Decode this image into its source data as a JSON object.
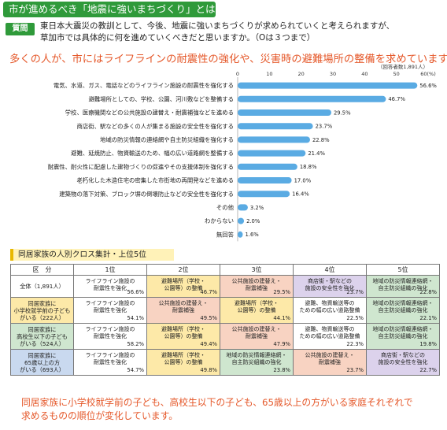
{
  "header": {
    "title": "市が進めるべき「地震に強いまちづくり」とは",
    "question_badge": "質問",
    "question_line1": "東日本大震災の教訓として、今後、地震に強いまちづくりが求められていくと考えられますが、",
    "question_line2": "草加市では具体的に何を進めていくべきだと思いますか。（Oは３つまで）",
    "headline": "多くの人が、市にはライフラインの耐震性の強化や、災害時の避難場所の整備を求めています。"
  },
  "chart_data": {
    "type": "bar",
    "orientation": "horizontal",
    "note": "（回答者数1,891人）",
    "x_ticks": [
      "0",
      "10",
      "20",
      "30",
      "40",
      "50",
      "60(%)"
    ],
    "xlim": [
      0,
      60
    ],
    "categories": [
      "電気、水道、ガス、電話などのライフライン施設の耐震性を強化する",
      "避難場所としての、学校、公園、河川敷などを整備する",
      "学校、医療機関などの公共施設の建替え・耐震補強などを進める",
      "商店街、駅などの多くの人が集まる施設の安全性を強化する",
      "地域の防災情報の連絡網や自主防災組織を強化する",
      "避難、延焼防止、物資輸送のため、幅の広い道路網を整備する",
      "耐震性、耐火性に配慮した建物づくりの促進やその支援体制を強化する",
      "老朽化した木造住宅の密集した市街地の再開発などを進める",
      "建築物の落下対策、ブロック塀の倒壊防止などの安全性を強化する",
      "その他",
      "わからない",
      "無回答"
    ],
    "values": [
      56.6,
      46.7,
      29.5,
      23.7,
      22.8,
      21.4,
      18.8,
      17.0,
      16.4,
      3.2,
      2.0,
      1.6
    ],
    "value_labels": [
      "56.6%",
      "46.7%",
      "29.5%",
      "23.7%",
      "22.8%",
      "21.4%",
      "18.8%",
      "17.0%",
      "16.4%",
      "3.2%",
      "2.0%",
      "1.6%"
    ],
    "bar_color": "#5aabe3"
  },
  "table": {
    "title": "同居家族の人別クロス集計・上位5位",
    "headers": [
      "区　分",
      "1位",
      "2位",
      "3位",
      "4位",
      "5位"
    ],
    "rows": [
      {
        "label": [
          "全体（1,891人）"
        ],
        "cells": [
          {
            "name": [
              "ライフライン施設の",
              "耐震性を強化"
            ],
            "pct": "56.6%",
            "cat": "life"
          },
          {
            "name": [
              "避難場所（学校・",
              "公園等）の整備"
            ],
            "pct": "46.7%",
            "cat": "evac"
          },
          {
            "name": [
              "公共施設の建替え・",
              "耐震補強"
            ],
            "pct": "29.5%",
            "cat": "public"
          },
          {
            "name": [
              "商店街・駅などの",
              "施設の安全性を強化"
            ],
            "pct": "23.7%",
            "cat": "gather"
          },
          {
            "name": [
              "地域の防災情報連絡網・",
              "自主防災組織の強化"
            ],
            "pct": "22.8%",
            "cat": "bousai"
          }
        ]
      },
      {
        "label": [
          "同居家族に",
          "小学校就学前の子ども",
          "がいる（222人）"
        ],
        "label_bg": "#fde9a8",
        "cells": [
          {
            "name": [
              "ライフライン施設の",
              "耐震性を強化"
            ],
            "pct": "54.1%",
            "cat": "life"
          },
          {
            "name": [
              "公共施設の建替え・",
              "耐震補強"
            ],
            "pct": "49.5%",
            "cat": "public"
          },
          {
            "name": [
              "避難場所（学校・",
              "公園等）の整備"
            ],
            "pct": "44.1%",
            "cat": "evac"
          },
          {
            "name": [
              "避難、物資輸送等の",
              "ための幅の広い道路整備"
            ],
            "pct": "22.5%",
            "cat": "road"
          },
          {
            "name": [
              "地域の防災情報連絡網・",
              "自主防災組織の強化"
            ],
            "pct": "22.1%",
            "cat": "bousai"
          }
        ]
      },
      {
        "label": [
          "同居家族に",
          "高校生以下の子ども",
          "がいる（524人）"
        ],
        "label_bg": "#cfe6cf",
        "cells": [
          {
            "name": [
              "ライフライン施設の",
              "耐震性を強化"
            ],
            "pct": "58.2%",
            "cat": "life"
          },
          {
            "name": [
              "避難場所（学校・",
              "公園等）の整備"
            ],
            "pct": "49.4%",
            "cat": "evac"
          },
          {
            "name": [
              "公共施設の建替え・",
              "耐震補強"
            ],
            "pct": "47.9%",
            "cat": "public"
          },
          {
            "name": [
              "避難、物資輸送等の",
              "ための幅の広い道路整備"
            ],
            "pct": "22.3%",
            "cat": "road"
          },
          {
            "name": [
              "地域の防災情報連絡網・",
              "自主防災組織の強化"
            ],
            "pct": "19.8%",
            "cat": "bousai"
          }
        ]
      },
      {
        "label": [
          "同居家族に",
          "65歳以上の方",
          "がいる（693人）"
        ],
        "label_bg": "#c9d9ef",
        "cells": [
          {
            "name": [
              "ライフライン施設の",
              "耐震性を強化"
            ],
            "pct": "54.7%",
            "cat": "life"
          },
          {
            "name": [
              "避難場所（学校・",
              "公園等）の整備"
            ],
            "pct": "49.8%",
            "cat": "evac"
          },
          {
            "name": [
              "地域の防災情報連絡網・",
              "自主防災組織の強化"
            ],
            "pct": "23.8%",
            "cat": "bousai"
          },
          {
            "name": [
              "公共施設の建替え・",
              "耐震補強"
            ],
            "pct": "23.7%",
            "cat": "public"
          },
          {
            "name": [
              "商店街・駅などの",
              "施設の安全性を強化"
            ],
            "pct": "22.7%",
            "cat": "gather"
          }
        ]
      }
    ]
  },
  "summary_line1": "同居家族に小学校就学前の子ども、高校生以下の子ども、65歳以上の方がいる家庭それぞれで",
  "summary_line2": "求めるものの順位が変化しています。"
}
